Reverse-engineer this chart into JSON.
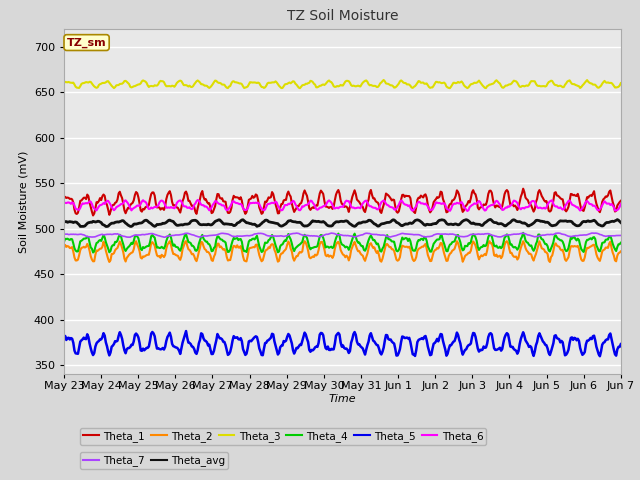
{
  "title": "TZ Soil Moisture",
  "xlabel": "Time",
  "ylabel": "Soil Moisture (mV)",
  "annotation": "TZ_sm",
  "ylim": [
    340,
    720
  ],
  "yticks": [
    350,
    400,
    450,
    500,
    550,
    600,
    650,
    700
  ],
  "x_labels": [
    "May 23",
    "May 24",
    "May 25",
    "May 26",
    "May 27",
    "May 28",
    "May 29",
    "May 30",
    "May 31",
    "Jun 1",
    "Jun 2",
    "Jun 3",
    "Jun 4",
    "Jun 5",
    "Jun 6",
    "Jun 7"
  ],
  "n_points": 480,
  "series_order": [
    "Theta_1",
    "Theta_2",
    "Theta_3",
    "Theta_4",
    "Theta_5",
    "Theta_6",
    "Theta_7",
    "Theta_avg"
  ],
  "series": {
    "Theta_1": {
      "color": "#cc0000",
      "base": 528,
      "amp": 9,
      "trend": 0.22,
      "freq": 2.2,
      "lw": 1.5
    },
    "Theta_2": {
      "color": "#ff8800",
      "base": 475,
      "amp": 8,
      "trend": 0.02,
      "freq": 2.2,
      "lw": 1.5
    },
    "Theta_3": {
      "color": "#dddd00",
      "base": 659,
      "amp": 3,
      "trend": 0.0,
      "freq": 2.0,
      "lw": 1.5
    },
    "Theta_4": {
      "color": "#00cc00",
      "base": 484,
      "amp": 7,
      "trend": 0.06,
      "freq": 2.2,
      "lw": 1.5
    },
    "Theta_5": {
      "color": "#0000ee",
      "base": 374,
      "amp": 9,
      "trend": -0.05,
      "freq": 2.2,
      "lw": 1.8
    },
    "Theta_6": {
      "color": "#ff00ff",
      "base": 526,
      "amp": 4,
      "trend": -0.03,
      "freq": 2.0,
      "lw": 1.5
    },
    "Theta_7": {
      "color": "#aa44ff",
      "base": 493,
      "amp": 1.5,
      "trend": 0.03,
      "freq": 1.0,
      "lw": 1.2
    },
    "Theta_avg": {
      "color": "#111111",
      "base": 506,
      "amp": 2.5,
      "trend": 0.06,
      "freq": 1.5,
      "lw": 2.0
    }
  },
  "background_color": "#e8e8e8",
  "fig_facecolor": "#d8d8d8",
  "legend_row1": [
    "Theta_1",
    "Theta_2",
    "Theta_3",
    "Theta_4",
    "Theta_5",
    "Theta_6"
  ],
  "legend_row2": [
    "Theta_7",
    "Theta_avg"
  ]
}
